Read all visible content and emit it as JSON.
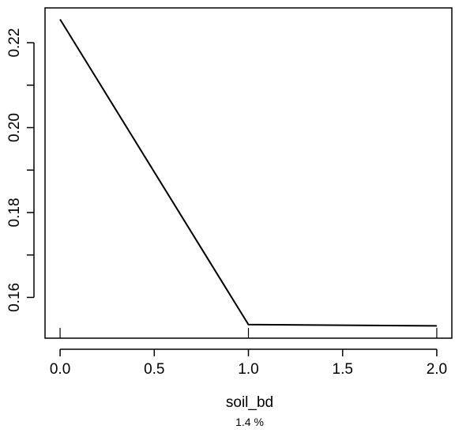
{
  "chart_data": {
    "type": "line",
    "x": [
      0.0,
      1.0,
      2.0
    ],
    "y": [
      0.2255,
      0.1536,
      0.1533
    ],
    "xlabel": "soil_bd",
    "subtitle": "1.4 %",
    "xlim": [
      -0.08,
      2.08
    ],
    "ylim": [
      0.1504,
      0.2282
    ],
    "xticks": [
      0.0,
      0.5,
      1.0,
      1.5,
      2.0
    ],
    "xtick_labels": [
      "0.0",
      "0.5",
      "1.0",
      "1.5",
      "2.0"
    ],
    "yticks": [
      0.16,
      0.18,
      0.2,
      0.22
    ],
    "ytick_labels": [
      "0.16",
      "0.18",
      "0.20",
      "0.22"
    ],
    "rug_x": [
      0.0,
      1.0,
      2.0
    ],
    "grid": false,
    "line_color": "#000000"
  }
}
